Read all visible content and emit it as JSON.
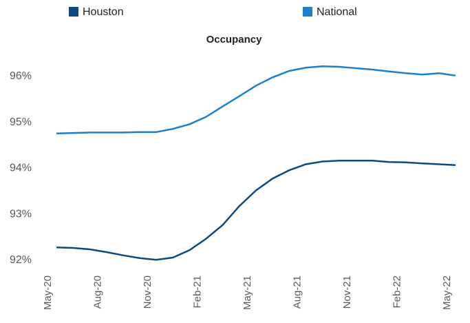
{
  "chart_data": {
    "type": "line",
    "title": "Occupancy",
    "categories": [
      "May-20",
      null,
      null,
      "Aug-20",
      null,
      null,
      "Nov-20",
      null,
      null,
      "Feb-21",
      null,
      null,
      "May-21",
      null,
      null,
      "Aug-21",
      null,
      null,
      "Nov-21",
      null,
      null,
      "Feb-22",
      null,
      null,
      "May-22"
    ],
    "series": [
      {
        "name": "Houston",
        "color": "#0b4a7e",
        "values": [
          92.28,
          92.27,
          92.24,
          92.18,
          92.11,
          92.05,
          92.01,
          92.06,
          92.22,
          92.47,
          92.77,
          93.18,
          93.52,
          93.78,
          93.96,
          94.09,
          94.15,
          94.17,
          94.17,
          94.17,
          94.14,
          94.13,
          94.11,
          94.09,
          94.07
        ]
      },
      {
        "name": "National",
        "color": "#1b7fce",
        "values": [
          94.76,
          94.77,
          94.78,
          94.78,
          94.78,
          94.79,
          94.79,
          94.86,
          94.96,
          95.12,
          95.35,
          95.57,
          95.8,
          95.98,
          96.12,
          96.19,
          96.22,
          96.21,
          96.18,
          96.15,
          96.11,
          96.07,
          96.04,
          96.07,
          96.02
        ]
      }
    ],
    "ylim": [
      92,
      96
    ],
    "yticks": [
      {
        "value": 92,
        "label": "92%"
      },
      {
        "value": 93,
        "label": "93%"
      },
      {
        "value": 94,
        "label": "94%"
      },
      {
        "value": 95,
        "label": "95%"
      },
      {
        "value": 96,
        "label": "96%"
      }
    ],
    "grid": false,
    "legend": "top"
  }
}
